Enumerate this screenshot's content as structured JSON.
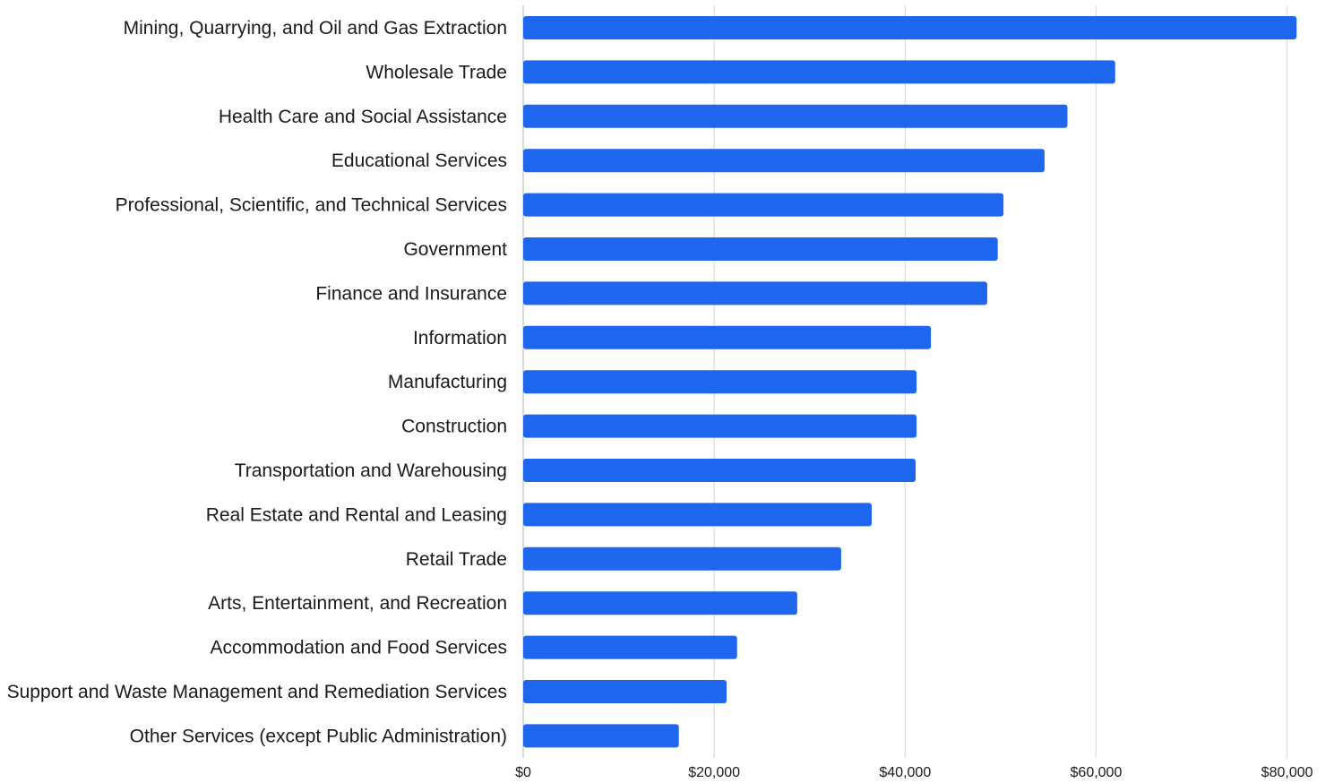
{
  "chart_data": {
    "type": "bar",
    "orientation": "horizontal",
    "categories": [
      "Mining, Quarrying, and Oil and Gas Extraction",
      "Wholesale Trade",
      "Health Care and Social Assistance",
      "Educational Services",
      "Professional, Scientific, and Technical Services",
      "Government",
      "Finance and Insurance",
      "Information",
      "Manufacturing",
      "Construction",
      "Transportation and Warehousing",
      "Real Estate and Rental and Leasing",
      "Retail Trade",
      "Arts, Entertainment, and Recreation",
      "Accommodation and Food Services",
      "Support and Waste Management and Remediation Services",
      "Other Services (except Public Administration)"
    ],
    "values": [
      81000,
      62000,
      57000,
      54600,
      50300,
      49700,
      48600,
      42700,
      41200,
      41200,
      41100,
      36500,
      33300,
      28700,
      22400,
      21300,
      16300
    ],
    "xlim": [
      0,
      81000
    ],
    "x_ticks": [
      0,
      20000,
      40000,
      60000,
      80000
    ],
    "x_tick_labels": [
      "$0",
      "$20,000",
      "$40,000",
      "$60,000",
      "$80,000"
    ],
    "title": "",
    "xlabel": "",
    "ylabel": "",
    "grid": "vertical",
    "legend": "none",
    "bar_color": "#1f66ee"
  }
}
